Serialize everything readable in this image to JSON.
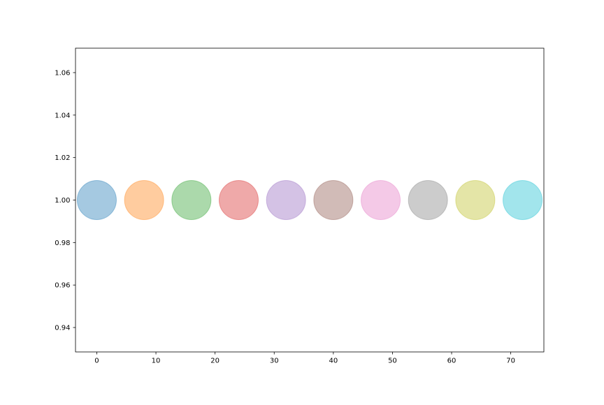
{
  "chart_data": {
    "type": "scatter",
    "title": "",
    "xlabel": "",
    "ylabel": "",
    "xlim": [
      -3.6,
      75.6
    ],
    "ylim": [
      0.9285,
      1.0715
    ],
    "grid": false,
    "legend": "none",
    "x_ticks": [
      {
        "value": 0,
        "label": "0"
      },
      {
        "value": 10,
        "label": "10"
      },
      {
        "value": 20,
        "label": "20"
      },
      {
        "value": 30,
        "label": "30"
      },
      {
        "value": 40,
        "label": "40"
      },
      {
        "value": 50,
        "label": "50"
      },
      {
        "value": 60,
        "label": "60"
      },
      {
        "value": 70,
        "label": "70"
      }
    ],
    "y_ticks": [
      {
        "value": 0.94,
        "label": "0.94"
      },
      {
        "value": 0.96,
        "label": "0.96"
      },
      {
        "value": 0.98,
        "label": "0.98"
      },
      {
        "value": 1.0,
        "label": "1.00"
      },
      {
        "value": 1.02,
        "label": "1.02"
      },
      {
        "value": 1.04,
        "label": "1.04"
      },
      {
        "value": 1.06,
        "label": "1.06"
      }
    ],
    "points": [
      {
        "x": 0,
        "y": 1.0,
        "color": "#1f77b4"
      },
      {
        "x": 8,
        "y": 1.0,
        "color": "#ff7f0e"
      },
      {
        "x": 16,
        "y": 1.0,
        "color": "#2ca02c"
      },
      {
        "x": 24,
        "y": 1.0,
        "color": "#d62728"
      },
      {
        "x": 32,
        "y": 1.0,
        "color": "#9467bd"
      },
      {
        "x": 40,
        "y": 1.0,
        "color": "#8c564b"
      },
      {
        "x": 48,
        "y": 1.0,
        "color": "#e377c2"
      },
      {
        "x": 56,
        "y": 1.0,
        "color": "#7f7f7f"
      },
      {
        "x": 64,
        "y": 1.0,
        "color": "#bcbd22"
      },
      {
        "x": 72,
        "y": 1.0,
        "color": "#17becf"
      }
    ],
    "marker_alpha": 0.4,
    "colors": {
      "seaborn_muted": [
        "#4878d0",
        "#ee854a",
        "#6acc64",
        "#d65f5f",
        "#956cb4",
        "#8c613c",
        "#dc7ec0",
        "#797979",
        "#d5bb67",
        "#82c6e2"
      ]
    }
  }
}
